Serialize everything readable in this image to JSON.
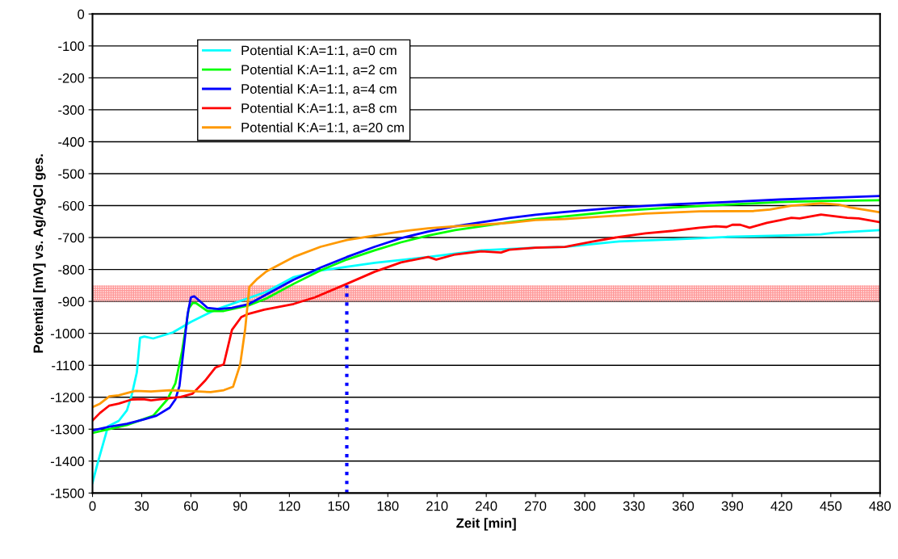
{
  "chart_data": {
    "type": "line",
    "xlabel": "Zeit [min]",
    "ylabel": "Potential [mV] vs. Ag/AgCl ges.",
    "xlim": [
      0,
      480
    ],
    "xticks": [
      0,
      30,
      60,
      90,
      120,
      150,
      180,
      210,
      240,
      270,
      300,
      330,
      360,
      390,
      420,
      450,
      480
    ],
    "ylim": [
      -1500,
      0
    ],
    "yticks": [
      -1500,
      -1400,
      -1300,
      -1200,
      -1100,
      -1000,
      -900,
      -800,
      -700,
      -600,
      -500,
      -400,
      -300,
      -200,
      -100,
      0
    ],
    "grid": "y",
    "legend": "top left",
    "marker": "none",
    "line_style": "solid",
    "series": [
      {
        "name": "Potential K:A=1:1, a=0 cm",
        "color": "#00ffff",
        "x": [
          0,
          3,
          9.5,
          16,
          21,
          24,
          27,
          29,
          31.6,
          37,
          49,
          60,
          75,
          106,
          122.6,
          139,
          172,
          204.6,
          237,
          270,
          288,
          321,
          354,
          386.5,
          419,
          444,
          452,
          480
        ],
        "values": [
          -1468,
          -1409,
          -1291,
          -1274,
          -1241,
          -1191,
          -1123,
          -1014,
          -1010,
          -1016,
          -997,
          -964,
          -926,
          -870,
          -824,
          -803,
          -779,
          -761,
          -740,
          -732,
          -729,
          -712,
          -706,
          -698,
          -694,
          -690,
          -685,
          -677
        ]
      },
      {
        "name": "Potential K:A=1:1, a=2 cm",
        "color": "#00ff00",
        "x": [
          0,
          21,
          37,
          45.6,
          50.5,
          54.6,
          58.7,
          61,
          63,
          70,
          80,
          95,
          106,
          122.6,
          139,
          155,
          172,
          188,
          204.6,
          221,
          237,
          254,
          270,
          288,
          321,
          354,
          386.5,
          419,
          452,
          480
        ],
        "values": [
          -1312,
          -1287,
          -1258,
          -1207,
          -1157,
          -1056,
          -922,
          -905,
          -905,
          -930,
          -930,
          -913,
          -891,
          -845,
          -803,
          -769,
          -740,
          -715,
          -694,
          -677,
          -665,
          -652,
          -642,
          -634,
          -617,
          -606,
          -597,
          -589,
          -585,
          -583
        ]
      },
      {
        "name": "Potential K:A=1:1, a=4 cm",
        "color": "#0000ff",
        "x": [
          0,
          9.5,
          21,
          31,
          39,
          47,
          50.5,
          53,
          55.4,
          58,
          60,
          62,
          65,
          70,
          77,
          85,
          95,
          106,
          122.6,
          139,
          155,
          172,
          188,
          204.6,
          221,
          237,
          254,
          270,
          288,
          321,
          354,
          386.5,
          419,
          452,
          480
        ],
        "values": [
          -1304,
          -1293,
          -1283,
          -1270,
          -1258,
          -1233,
          -1207,
          -1165,
          -1056,
          -939,
          -887,
          -884,
          -897,
          -920,
          -924,
          -920,
          -909,
          -878,
          -832,
          -794,
          -761,
          -729,
          -702,
          -681,
          -665,
          -652,
          -639,
          -629,
          -620,
          -606,
          -596,
          -589,
          -581,
          -575,
          -570
        ]
      },
      {
        "name": "Potential K:A=1:1, a=8 cm",
        "color": "#ff0000",
        "x": [
          0,
          4.6,
          10.3,
          16,
          24,
          31,
          35.7,
          47,
          53.8,
          61,
          68.5,
          75,
          80,
          85,
          90.7,
          95,
          104.6,
          122.6,
          135.7,
          155,
          172,
          188,
          204.6,
          209.5,
          221,
          237,
          249,
          254,
          270,
          288,
          304.6,
          321,
          337,
          354,
          370,
          380,
          386.5,
          390,
          394.8,
          400.5,
          411,
          419,
          426,
          431,
          444,
          452,
          460,
          467,
          480
        ],
        "values": [
          -1273,
          -1249,
          -1226,
          -1220,
          -1207,
          -1206,
          -1210,
          -1203,
          -1199,
          -1189,
          -1149,
          -1107,
          -1097,
          -989,
          -949,
          -939,
          -926,
          -908,
          -887,
          -845,
          -807,
          -778,
          -761,
          -769,
          -753,
          -743,
          -747,
          -738,
          -732,
          -729,
          -713,
          -698,
          -687,
          -679,
          -669,
          -665,
          -667,
          -660,
          -660,
          -669,
          -654,
          -646,
          -638,
          -640,
          -628,
          -633,
          -638,
          -640,
          -652
        ]
      },
      {
        "name": "Potential K:A=1:1, a=20 cm",
        "color": "#ff9900",
        "x": [
          0,
          4.6,
          10.3,
          16,
          26,
          35.7,
          47,
          60,
          72,
          80,
          85.7,
          90,
          93,
          95.6,
          100.5,
          106,
          122.6,
          139,
          155,
          172,
          188,
          204.6,
          221,
          237,
          254,
          270,
          288,
          321,
          337,
          370,
          403,
          413,
          426,
          444,
          455,
          462,
          472,
          480
        ],
        "values": [
          -1231,
          -1220,
          -1197,
          -1194,
          -1180,
          -1182,
          -1178,
          -1181,
          -1184,
          -1178,
          -1167,
          -1098,
          -989,
          -855,
          -829,
          -806,
          -761,
          -729,
          -708,
          -694,
          -681,
          -671,
          -665,
          -660,
          -654,
          -645,
          -642,
          -631,
          -625,
          -618,
          -617,
          -612,
          -600,
          -593,
          -597,
          -606,
          -614,
          -621
        ]
      }
    ],
    "bands": [
      {
        "axis": "y",
        "from": -900,
        "to": -850,
        "color": "#ff9999"
      }
    ],
    "ref_lines": [
      {
        "axis": "x",
        "value": 155,
        "color": "#0000ff",
        "line_style": "dotted"
      }
    ]
  }
}
